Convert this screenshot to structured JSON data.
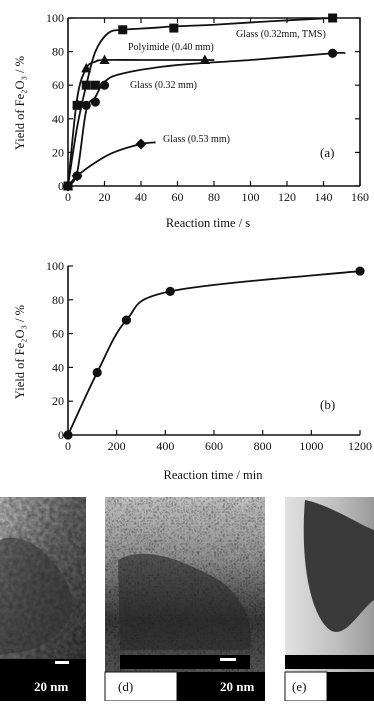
{
  "chart_data": [
    {
      "type": "line",
      "panel_label": "(a)",
      "xlabel": "Reaction time / s",
      "ylabel": "Yield of Fe₂O₃ / %",
      "xlim": [
        0,
        160
      ],
      "ylim": [
        0,
        100
      ],
      "xticks": [
        0,
        20,
        40,
        60,
        80,
        100,
        120,
        140,
        160
      ],
      "yticks": [
        0,
        20,
        40,
        60,
        80,
        100
      ],
      "series": [
        {
          "name": "Glass (0.32mm, TMS)",
          "marker": "square",
          "x": [
            0,
            5,
            10,
            15,
            30,
            58,
            145
          ],
          "y": [
            0,
            48,
            60,
            60,
            93,
            94,
            100
          ],
          "curve_x": [
            0,
            5,
            10,
            15,
            22,
            30,
            45,
            58,
            80,
            110,
            145
          ],
          "curve_y": [
            0,
            35,
            60,
            80,
            91,
            93,
            94,
            95,
            96,
            98,
            100
          ]
        },
        {
          "name": "Polyimide (0.40 mm)",
          "marker": "triangle",
          "x": [
            0,
            5,
            10,
            20,
            75
          ],
          "y": [
            0,
            49,
            70,
            75,
            75
          ],
          "curve_x": [
            0,
            5,
            10,
            15,
            20,
            40,
            75,
            80
          ],
          "curve_y": [
            0,
            52,
            70,
            74,
            75,
            75,
            75,
            75
          ]
        },
        {
          "name": "Glass (0.32 mm)",
          "marker": "circle",
          "x": [
            0,
            5,
            10,
            15,
            20,
            145
          ],
          "y": [
            0,
            6,
            48,
            50,
            60,
            79
          ],
          "curve_x": [
            0,
            5,
            10,
            15,
            20,
            30,
            60,
            100,
            145,
            152
          ],
          "curve_y": [
            0,
            8,
            45,
            53,
            62,
            67,
            72,
            75,
            79,
            79
          ]
        },
        {
          "name": "Glass (0.53 mm)",
          "marker": "diamond",
          "x": [
            0,
            5,
            40
          ],
          "y": [
            0,
            6,
            25
          ],
          "curve_x": [
            0,
            5,
            15,
            25,
            40,
            48
          ],
          "curve_y": [
            0,
            6,
            14,
            20,
            25,
            26
          ]
        }
      ]
    },
    {
      "type": "line",
      "panel_label": "(b)",
      "xlabel": "Reaction time / min",
      "ylabel": "Yield of Fe₂O₃ / %",
      "xlim": [
        0,
        1200
      ],
      "ylim": [
        0,
        100
      ],
      "xticks": [
        0,
        200,
        400,
        600,
        800,
        1000,
        1200
      ],
      "yticks": [
        0,
        20,
        40,
        60,
        80,
        100
      ],
      "series": [
        {
          "marker": "circle",
          "x": [
            0,
            120,
            240,
            420,
            1200
          ],
          "y": [
            0,
            37,
            68,
            85,
            97
          ]
        }
      ]
    }
  ],
  "images": [
    {
      "scale_label": "20 nm",
      "panel_label": ""
    },
    {
      "scale_label": "20 nm",
      "panel_label": "(d)"
    },
    {
      "scale_label": "",
      "panel_label": "(e)"
    }
  ]
}
